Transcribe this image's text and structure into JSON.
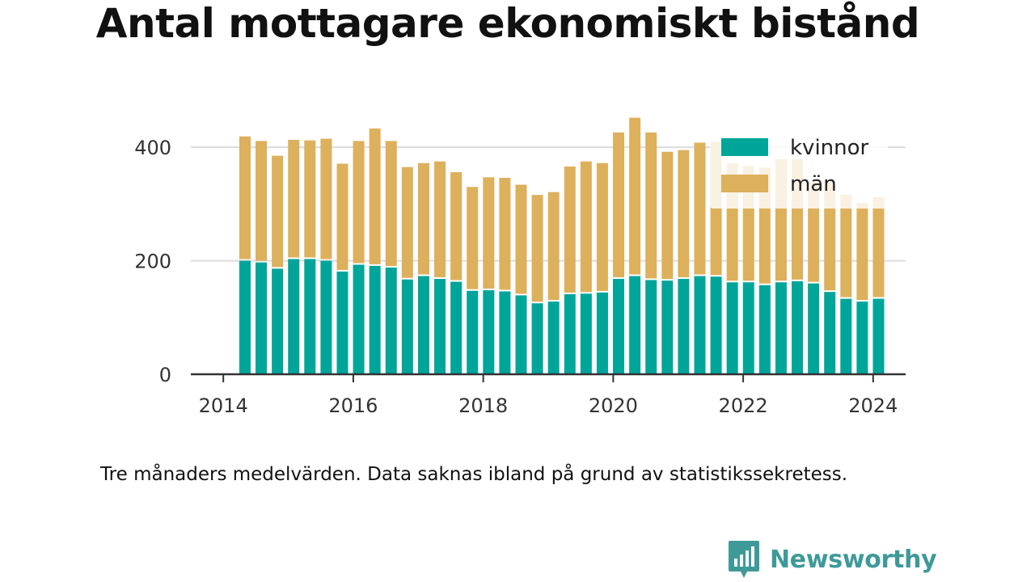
{
  "title": "Antal mottagare ekonomiskt bistånd",
  "caption": "Tre månaders medelvärden. Data saknas ibland på grund av statistikssekretess.",
  "brand": {
    "name": "Newsworthy",
    "color": "#3e9a98",
    "icon": "newsworthy-logo-icon"
  },
  "chart_data": {
    "type": "bar",
    "stacked": true,
    "x": [
      2014.333,
      2014.583,
      2014.833,
      2015.083,
      2015.333,
      2015.583,
      2015.833,
      2016.083,
      2016.333,
      2016.583,
      2016.833,
      2017.083,
      2017.333,
      2017.583,
      2017.833,
      2018.083,
      2018.333,
      2018.583,
      2018.833,
      2019.083,
      2019.333,
      2019.583,
      2019.833,
      2020.083,
      2020.333,
      2020.583,
      2020.833,
      2021.083,
      2021.333,
      2021.583,
      2021.833,
      2022.083,
      2022.333,
      2022.583,
      2022.833,
      2023.083,
      2023.333,
      2023.583,
      2023.833,
      2024.083
    ],
    "series": [
      {
        "name": "kvinnor",
        "color": "#00a59a",
        "values": [
          200,
          197,
          186,
          203,
          203,
          200,
          181,
          193,
          191,
          188,
          167,
          173,
          168,
          163,
          147,
          148,
          146,
          139,
          125,
          128,
          141,
          142,
          144,
          168,
          173,
          166,
          165,
          168,
          173,
          172,
          162,
          162,
          157,
          162,
          164,
          160,
          145,
          133,
          128,
          133
        ]
      },
      {
        "name": "män",
        "color": "#ddb05c",
        "values": [
          219,
          214,
          199,
          210,
          209,
          215,
          190,
          218,
          242,
          223,
          198,
          199,
          207,
          193,
          183,
          199,
          200,
          195,
          191,
          193,
          225,
          233,
          228,
          258,
          279,
          260,
          227,
          227,
          235,
          237,
          210,
          205,
          207,
          217,
          215,
          178,
          195,
          184,
          174,
          179
        ]
      }
    ],
    "xticks": [
      2014,
      2016,
      2018,
      2020,
      2022,
      2024
    ],
    "xtick_labels": [
      "2014",
      "2016",
      "2018",
      "2020",
      "2022",
      "2024"
    ],
    "yticks": [
      0,
      200,
      400
    ],
    "ytick_labels": [
      "0",
      "200",
      "400"
    ],
    "xlim": [
      2013.5,
      2024.5
    ],
    "ylim": [
      0,
      460
    ],
    "xlabel": "",
    "ylabel": "",
    "grid": {
      "y": true,
      "x": false
    },
    "legend": {
      "placement": "top-right"
    }
  }
}
